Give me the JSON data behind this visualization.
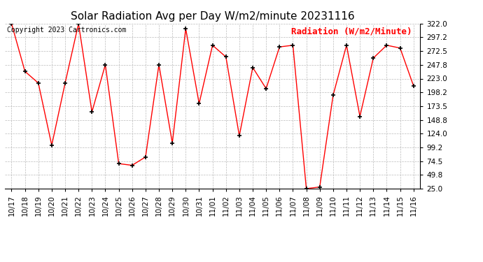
{
  "title": "Solar Radiation Avg per Day W/m2/minute 20231116",
  "copyright_text": "Copyright 2023 Cartronics.com",
  "legend_label": "Radiation (W/m2/Minute)",
  "dates": [
    "10/17",
    "10/18",
    "10/19",
    "10/20",
    "10/21",
    "10/22",
    "10/23",
    "10/24",
    "10/25",
    "10/26",
    "10/27",
    "10/28",
    "10/29",
    "10/30",
    "10/31",
    "11/01",
    "11/02",
    "11/03",
    "11/04",
    "11/05",
    "11/06",
    "11/07",
    "11/08",
    "11/09",
    "11/10",
    "11/11",
    "11/12",
    "11/13",
    "11/14",
    "11/15",
    "11/16"
  ],
  "values": [
    322.0,
    236.0,
    215.0,
    103.0,
    215.0,
    322.0,
    163.0,
    248.0,
    70.0,
    67.0,
    82.0,
    248.0,
    107.0,
    313.0,
    178.0,
    283.0,
    262.0,
    120.0,
    243.0,
    205.0,
    280.0,
    283.0,
    25.0,
    28.0,
    193.0,
    283.0,
    155.0,
    260.0,
    283.0,
    278.0,
    210.0
  ],
  "ylim": [
    25.0,
    322.0
  ],
  "yticks": [
    25.0,
    49.8,
    74.5,
    99.2,
    124.0,
    148.8,
    173.5,
    198.2,
    223.0,
    247.8,
    272.5,
    297.2,
    322.0
  ],
  "line_color": "red",
  "marker": "+",
  "marker_color": "black",
  "bg_color": "white",
  "grid_color": "#bbbbbb",
  "title_fontsize": 11,
  "tick_fontsize": 7.5,
  "legend_fontsize": 9,
  "copyright_fontsize": 7
}
